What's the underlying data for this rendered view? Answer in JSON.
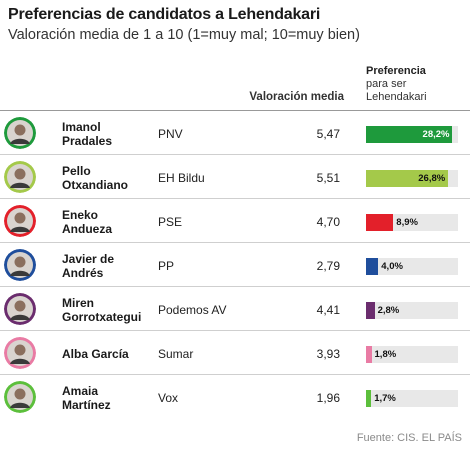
{
  "title": "Preferencias de candidatos a Lehendakari",
  "subtitle": "Valoración media de 1 a 10 (1=muy mal; 10=muy bien)",
  "headers": {
    "valoracion": "Valoración media",
    "preferencia_title": "Preferencia",
    "preferencia_line1": "para ser",
    "preferencia_line2": "Lehendakari"
  },
  "source": "Fuente: CIS. EL PAÍS",
  "chart_data": {
    "type": "table",
    "columns": [
      "Candidato",
      "Partido",
      "Valoración media",
      "Preferencia para ser Lehendakari"
    ],
    "rows": [
      {
        "name_l1": "Imanol",
        "name_l2": "Pradales",
        "party": "PNV",
        "valoracion": "5,47",
        "preferencia": 28.2,
        "pref_label": "28,2%",
        "color": "#1e9a3c",
        "avatar_bg": "#1e9a3c"
      },
      {
        "name_l1": "Pello",
        "name_l2": "Otxandiano",
        "party": "EH Bildu",
        "valoracion": "5,51",
        "preferencia": 26.8,
        "pref_label": "26,8%",
        "color": "#a4c94a",
        "avatar_bg": "#a4c94a"
      },
      {
        "name_l1": "Eneko",
        "name_l2": "Andueza",
        "party": "PSE",
        "valoracion": "4,70",
        "preferencia": 8.9,
        "pref_label": "8,9%",
        "color": "#e3202a",
        "avatar_bg": "#e3202a"
      },
      {
        "name_l1": "Javier de",
        "name_l2": "Andrés",
        "party": "PP",
        "valoracion": "2,79",
        "preferencia": 4.0,
        "pref_label": "4,0%",
        "color": "#1f4e9c",
        "avatar_bg": "#1f4e9c"
      },
      {
        "name_l1": "Miren",
        "name_l2": "Gorrotxategui",
        "party": "Podemos AV",
        "valoracion": "4,41",
        "preferencia": 2.8,
        "pref_label": "2,8%",
        "color": "#6b2d6e",
        "avatar_bg": "#6b2d6e"
      },
      {
        "name_l1": "Alba García",
        "name_l2": "",
        "party": "Sumar",
        "valoracion": "3,93",
        "preferencia": 1.8,
        "pref_label": "1,8%",
        "color": "#e97ba4",
        "avatar_bg": "#e97ba4"
      },
      {
        "name_l1": "Amaia",
        "name_l2": "Martínez",
        "party": "Vox",
        "valoracion": "1,96",
        "preferencia": 1.7,
        "pref_label": "1,7%",
        "color": "#5cbf3c",
        "avatar_bg": "#5cbf3c"
      }
    ],
    "pref_max": 30
  }
}
